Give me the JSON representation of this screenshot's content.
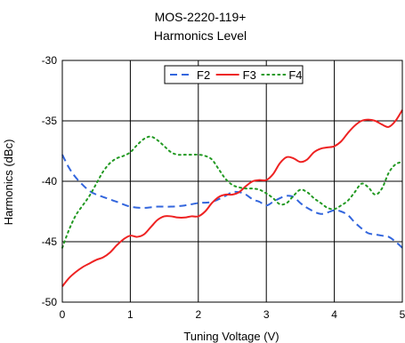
{
  "chart_data": {
    "type": "line",
    "title": "MOS-2220-119+",
    "subtitle": "Harmonics Level",
    "xlabel": "Tuning Voltage (V)",
    "ylabel": "Harmonics (dBc)",
    "xlim": [
      0,
      5
    ],
    "ylim": [
      -50,
      -30
    ],
    "xticks": [
      "0",
      "1",
      "2",
      "3",
      "4",
      "5"
    ],
    "yticks": [
      "-30",
      "-35",
      "-40",
      "-45",
      "-50"
    ],
    "grid": true,
    "legend_position": "top-right",
    "series": [
      {
        "name": "F2",
        "color": "#3366dd",
        "dash": "dashed",
        "x": [
          0,
          0.1,
          0.2,
          0.3,
          0.4,
          0.5,
          0.6,
          0.8,
          1.0,
          1.2,
          1.4,
          1.6,
          1.8,
          2.0,
          2.2,
          2.4,
          2.5,
          2.6,
          2.7,
          2.8,
          2.9,
          3.0,
          3.1,
          3.2,
          3.3,
          3.4,
          3.5,
          3.6,
          3.8,
          4.0,
          4.1,
          4.2,
          4.3,
          4.4,
          4.5,
          4.6,
          4.7,
          4.8,
          4.9,
          5.0
        ],
        "values": [
          -37.8,
          -38.9,
          -39.7,
          -40.3,
          -40.8,
          -41.1,
          -41.3,
          -41.7,
          -42.1,
          -42.2,
          -42.1,
          -42.1,
          -42.0,
          -41.8,
          -41.7,
          -41.2,
          -40.9,
          -40.9,
          -41.1,
          -41.5,
          -41.7,
          -42.0,
          -41.7,
          -41.4,
          -41.2,
          -41.3,
          -41.8,
          -42.2,
          -42.7,
          -42.4,
          -42.5,
          -42.8,
          -43.4,
          -43.9,
          -44.3,
          -44.4,
          -44.5,
          -44.6,
          -45.0,
          -45.5
        ]
      },
      {
        "name": "F3",
        "color": "#ee2222",
        "dash": "solid",
        "x": [
          0,
          0.1,
          0.2,
          0.3,
          0.4,
          0.5,
          0.6,
          0.7,
          0.8,
          0.9,
          1.0,
          1.1,
          1.2,
          1.3,
          1.4,
          1.5,
          1.6,
          1.7,
          1.8,
          1.9,
          2.0,
          2.1,
          2.2,
          2.3,
          2.4,
          2.5,
          2.6,
          2.7,
          2.8,
          2.9,
          3.0,
          3.1,
          3.2,
          3.3,
          3.4,
          3.5,
          3.6,
          3.7,
          3.8,
          3.9,
          4.0,
          4.1,
          4.2,
          4.3,
          4.4,
          4.5,
          4.6,
          4.7,
          4.8,
          4.9,
          5.0
        ],
        "values": [
          -48.7,
          -48.0,
          -47.5,
          -47.1,
          -46.8,
          -46.5,
          -46.3,
          -45.9,
          -45.3,
          -44.8,
          -44.5,
          -44.6,
          -44.4,
          -43.8,
          -43.2,
          -42.9,
          -42.9,
          -43.0,
          -43.0,
          -42.9,
          -42.9,
          -42.5,
          -41.8,
          -41.3,
          -41.1,
          -41.1,
          -40.9,
          -40.4,
          -40.0,
          -39.9,
          -39.9,
          -39.4,
          -38.5,
          -38.0,
          -38.1,
          -38.4,
          -38.2,
          -37.6,
          -37.3,
          -37.2,
          -37.1,
          -36.7,
          -36.0,
          -35.4,
          -35.0,
          -34.9,
          -35.0,
          -35.3,
          -35.5,
          -35.0,
          -34.1
        ]
      },
      {
        "name": "F4",
        "color": "#229922",
        "dash": "dotted",
        "x": [
          0,
          0.1,
          0.2,
          0.3,
          0.4,
          0.5,
          0.6,
          0.7,
          0.8,
          0.9,
          1.0,
          1.1,
          1.2,
          1.3,
          1.4,
          1.5,
          1.6,
          1.7,
          1.8,
          1.9,
          2.0,
          2.1,
          2.2,
          2.3,
          2.4,
          2.5,
          2.6,
          2.7,
          2.8,
          2.9,
          3.0,
          3.1,
          3.2,
          3.3,
          3.4,
          3.5,
          3.6,
          3.7,
          3.8,
          3.9,
          4.0,
          4.1,
          4.2,
          4.3,
          4.4,
          4.5,
          4.6,
          4.7,
          4.8,
          4.9,
          5.0
        ],
        "values": [
          -45.5,
          -44.0,
          -42.8,
          -42.0,
          -41.2,
          -40.2,
          -39.2,
          -38.5,
          -38.1,
          -37.9,
          -37.6,
          -37.0,
          -36.5,
          -36.3,
          -36.6,
          -37.1,
          -37.6,
          -37.8,
          -37.8,
          -37.8,
          -37.8,
          -37.9,
          -38.2,
          -39.0,
          -39.8,
          -40.3,
          -40.5,
          -40.6,
          -40.6,
          -40.7,
          -41.0,
          -41.4,
          -41.9,
          -41.8,
          -41.2,
          -40.7,
          -40.9,
          -41.4,
          -41.8,
          -42.2,
          -42.3,
          -42.0,
          -41.6,
          -40.9,
          -40.2,
          -40.5,
          -41.1,
          -40.6,
          -39.3,
          -38.6,
          -38.4
        ]
      }
    ]
  }
}
